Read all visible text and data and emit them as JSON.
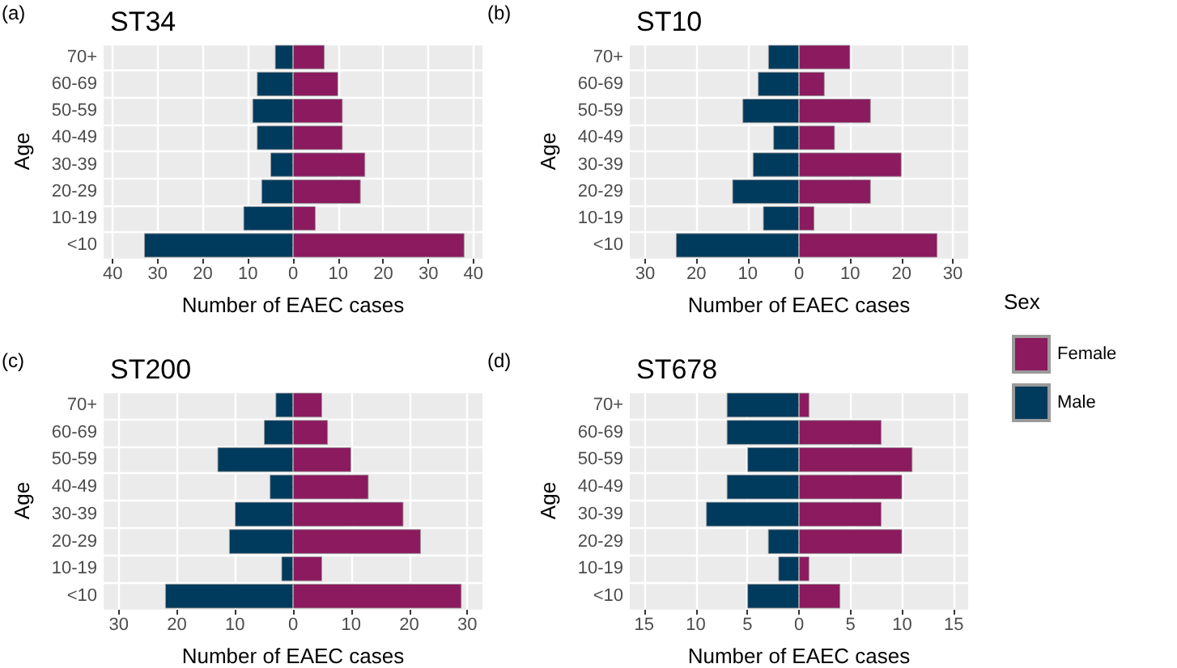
{
  "chart_data": [
    {
      "type": "bar",
      "orientation": "horizontal",
      "stacked": true,
      "title": "ST34",
      "annotations": [
        "(a)"
      ],
      "xlabel": "Number of EAEC cases",
      "ylabel": "Age",
      "categories": [
        "70+",
        "60-69",
        "50-59",
        "40-49",
        "30-39",
        "20-29",
        "10-19",
        "<10"
      ],
      "grid": true,
      "xlim": [
        -42,
        42
      ],
      "xticks": [
        {
          "value": -40,
          "label": "40"
        },
        {
          "value": -30,
          "label": "30"
        },
        {
          "value": -20,
          "label": "20"
        },
        {
          "value": -10,
          "label": "10"
        },
        0,
        10,
        20,
        30,
        40
      ],
      "series": [
        {
          "color": "#8b1a5e",
          "values": [
            7,
            10,
            11,
            11,
            16,
            15,
            5,
            38
          ]
        },
        {
          "color": "#003a5c",
          "values": [
            -4,
            -8,
            -9,
            -8,
            -5,
            -7,
            -11,
            -33
          ]
        }
      ]
    },
    {
      "type": "bar",
      "orientation": "horizontal",
      "stacked": true,
      "title": "ST10",
      "annotations": [
        "(b)"
      ],
      "xlabel": "Number of EAEC cases",
      "ylabel": "Age",
      "categories": [
        "70+",
        "60-69",
        "50-59",
        "40-49",
        "30-39",
        "20-29",
        "10-19",
        "<10"
      ],
      "grid": true,
      "xlim": [
        -33,
        33
      ],
      "xticks": [
        {
          "value": -30,
          "label": "30"
        },
        {
          "value": -20,
          "label": "20"
        },
        {
          "value": -10,
          "label": "10"
        },
        0,
        10,
        20,
        30
      ],
      "series": [
        {
          "color": "#8b1a5e",
          "values": [
            10,
            5,
            14,
            7,
            20,
            14,
            3,
            27
          ]
        },
        {
          "color": "#003a5c",
          "values": [
            -6,
            -8,
            -11,
            -5,
            -9,
            -13,
            -7,
            -24
          ]
        }
      ]
    },
    {
      "type": "bar",
      "orientation": "horizontal",
      "stacked": true,
      "title": "ST200",
      "annotations": [
        "(c)"
      ],
      "xlabel": "Number of EAEC cases",
      "ylabel": "Age",
      "categories": [
        "70+",
        "60-69",
        "50-59",
        "40-49",
        "30-39",
        "20-29",
        "10-19",
        "<10"
      ],
      "grid": true,
      "xlim": [
        -32.6,
        32.6
      ],
      "xticks": [
        {
          "value": -30,
          "label": "30"
        },
        {
          "value": -20,
          "label": "20"
        },
        {
          "value": -10,
          "label": "10"
        },
        0,
        10,
        20,
        30
      ],
      "series": [
        {
          "color": "#8b1a5e",
          "values": [
            5,
            6,
            10,
            13,
            19,
            22,
            5,
            29
          ]
        },
        {
          "color": "#003a5c",
          "values": [
            -3,
            -5,
            -13,
            -4,
            -10,
            -11,
            -2,
            -22
          ]
        }
      ]
    },
    {
      "type": "bar",
      "orientation": "horizontal",
      "stacked": true,
      "title": "ST678",
      "annotations": [
        "(d)"
      ],
      "xlabel": "Number of EAEC cases",
      "ylabel": "Age",
      "categories": [
        "70+",
        "60-69",
        "50-59",
        "40-49",
        "30-39",
        "20-29",
        "10-19",
        "<10"
      ],
      "grid": true,
      "legend": "right",
      "legend_title": "Sex",
      "xlim": [
        -16.4,
        16.4
      ],
      "xticks": [
        {
          "value": -15,
          "label": "15"
        },
        {
          "value": -10,
          "label": "10"
        },
        {
          "value": -5,
          "label": "5"
        },
        0,
        5,
        10,
        15
      ],
      "series": [
        {
          "name": "Female",
          "color": "#8b1a5e",
          "values": [
            1,
            8,
            11,
            10,
            8,
            10,
            1,
            4
          ]
        },
        {
          "name": "Male",
          "color": "#003a5c",
          "values": [
            -7,
            -7,
            -5,
            -7,
            -9,
            -3,
            -2,
            -5
          ]
        }
      ]
    }
  ]
}
